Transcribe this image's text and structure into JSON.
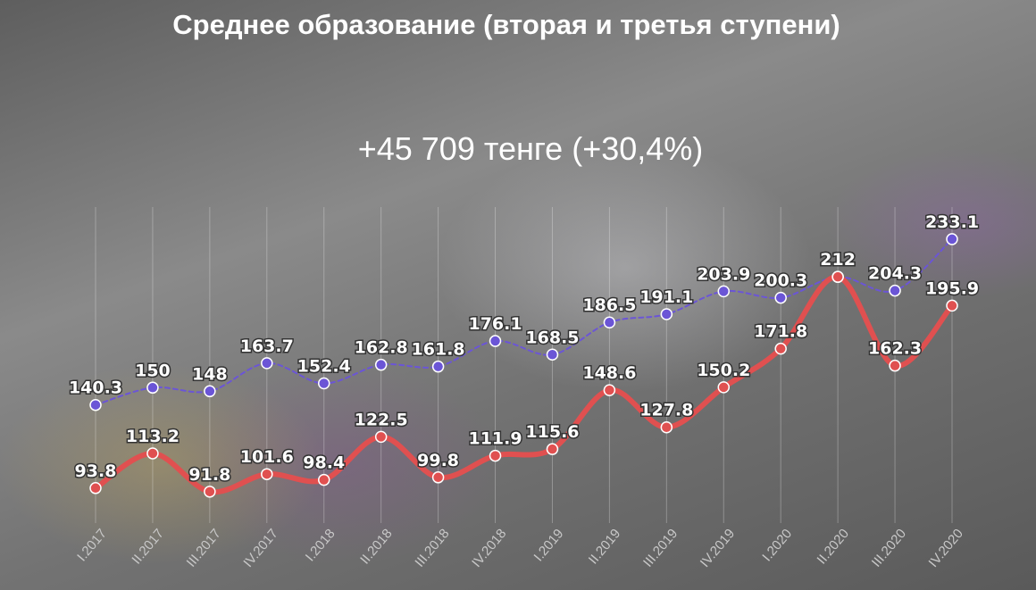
{
  "title": "Среднее образование (вторая и третья ступени)",
  "subtitle": "+45 709 тенге (+30,4%)",
  "chart_data": {
    "type": "line",
    "categories": [
      "I.2017",
      "II.2017",
      "III.2017",
      "IV.2017",
      "I.2018",
      "II.2018",
      "III.2018",
      "IV.2018",
      "I.2019",
      "II.2019",
      "III.2019",
      "IV.2019",
      "I.2020",
      "II.2020",
      "III.2020",
      "IV.2020"
    ],
    "series": [
      {
        "values": [
          140.3,
          150,
          148,
          163.7,
          152.4,
          162.8,
          161.8,
          176.1,
          168.5,
          186.5,
          191.1,
          203.9,
          200.3,
          212,
          204.3,
          233.1
        ],
        "labels": [
          "140.3",
          "150",
          "148",
          "163.7",
          "152.4",
          "162.8",
          "161.8",
          "176.1",
          "168.5",
          "186.5",
          "191.1",
          "203.9",
          "200.3",
          "212",
          "204.3",
          "233.1"
        ],
        "color": "#6b55d6",
        "style": "dashed"
      },
      {
        "values": [
          93.8,
          113.2,
          91.8,
          101.6,
          98.4,
          122.5,
          99.8,
          111.9,
          115.6,
          148.6,
          127.8,
          150.2,
          171.8,
          212,
          162.3,
          195.9
        ],
        "labels": [
          "93.8",
          "113.2",
          "91.8",
          "101.6",
          "98.4",
          "122.5",
          "99.8",
          "111.9",
          "115.6",
          "148.6",
          "127.8",
          "150.2",
          "171.8",
          "212",
          "162.3",
          "195.9"
        ],
        "color": "#e05050",
        "style": "smooth-thick"
      }
    ],
    "grid": "vertical"
  }
}
